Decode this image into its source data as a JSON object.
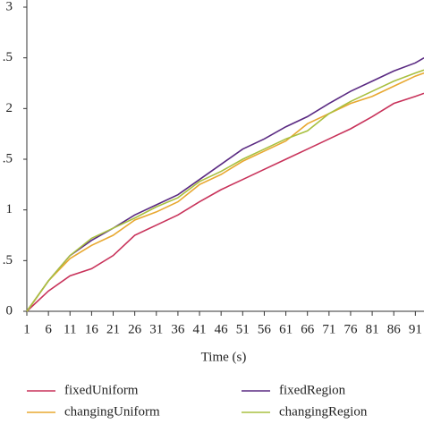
{
  "chart_data": {
    "type": "line",
    "x_label": "Time (s)",
    "x": [
      1,
      6,
      11,
      16,
      21,
      26,
      31,
      36,
      41,
      46,
      51,
      56,
      61,
      66,
      71,
      76,
      81,
      86,
      91,
      93
    ],
    "series": [
      {
        "name": "fixedUniform",
        "color": "#c8325a",
        "values": [
          0,
          0.2,
          0.35,
          0.42,
          0.55,
          0.75,
          0.85,
          0.95,
          1.08,
          1.2,
          1.3,
          1.4,
          1.5,
          1.6,
          1.7,
          1.8,
          1.92,
          2.05,
          2.12,
          2.15
        ]
      },
      {
        "name": "fixedRegion",
        "color": "#5a2a82",
        "values": [
          0,
          0.3,
          0.55,
          0.7,
          0.82,
          0.95,
          1.05,
          1.15,
          1.3,
          1.45,
          1.6,
          1.7,
          1.82,
          1.92,
          2.05,
          2.17,
          2.27,
          2.37,
          2.45,
          2.5
        ]
      },
      {
        "name": "changingUniform",
        "color": "#e8a830",
        "values": [
          0,
          0.3,
          0.52,
          0.65,
          0.75,
          0.9,
          0.98,
          1.08,
          1.25,
          1.35,
          1.48,
          1.58,
          1.68,
          1.85,
          1.95,
          2.05,
          2.12,
          2.22,
          2.32,
          2.35
        ]
      },
      {
        "name": "changingRegion",
        "color": "#a8c040",
        "values": [
          0,
          0.3,
          0.55,
          0.72,
          0.82,
          0.92,
          1.03,
          1.12,
          1.28,
          1.38,
          1.5,
          1.6,
          1.7,
          1.78,
          1.95,
          2.07,
          2.17,
          2.27,
          2.35,
          2.38
        ]
      }
    ],
    "xlim": [
      1,
      93
    ],
    "xticks": [
      1,
      6,
      11,
      16,
      21,
      26,
      31,
      36,
      41,
      46,
      51,
      56,
      61,
      66,
      71,
      76,
      81,
      86,
      91
    ],
    "ylim": [
      0,
      3
    ],
    "yticks": [
      0,
      {
        "value": 0.5,
        "label": ".5"
      },
      1,
      {
        "value": 1.5,
        "label": ".5"
      },
      2,
      {
        "value": 2.5,
        "label": ".5"
      },
      3
    ]
  }
}
